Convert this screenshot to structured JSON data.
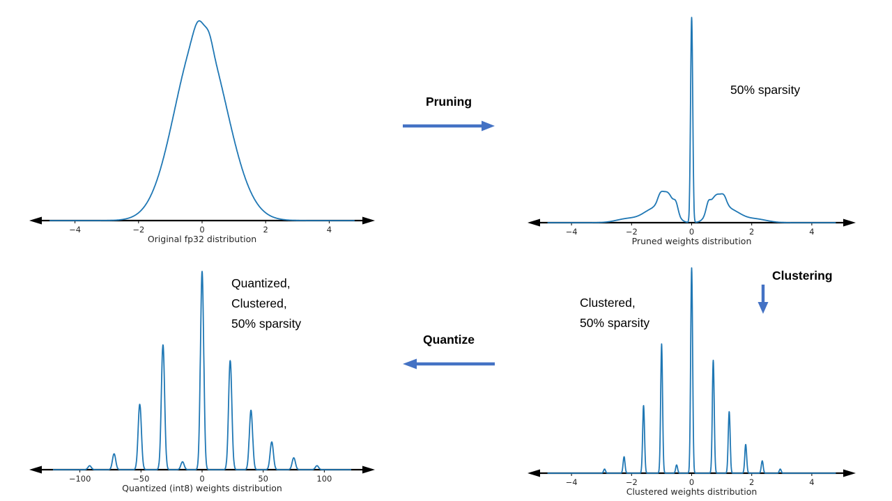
{
  "style": {
    "background": "#ffffff",
    "curve_color": "#1f77b4",
    "axis_color": "#000000",
    "flow_arrow_color": "#4472c4",
    "text_color": "#000000",
    "chart_text_color": "#262626"
  },
  "flow": {
    "pruning_label": "Pruning",
    "clustering_label": "Clustering",
    "quantize_label": "Quantize"
  },
  "chart_data": [
    {
      "id": "original-fp32",
      "type": "line",
      "xlabel": "Original fp32 distribution",
      "xlim": [
        -5,
        5
      ],
      "curve_span": [
        -4.8,
        4.8
      ],
      "xticks": [
        -4,
        -2,
        0,
        2,
        4
      ],
      "ylim": [
        0,
        1
      ],
      "description": "Smooth bell-shaped density of fp32 weights centered near 0, spanning roughly -3 to 3, with a tiny notch at the peak",
      "components": [
        {
          "c": -0.35,
          "h": 0.5,
          "w": 1.0
        },
        {
          "c": 0.3,
          "h": 0.48,
          "w": 1.05
        },
        {
          "c": -0.12,
          "h": 0.06,
          "w": 0.22
        },
        {
          "c": 0.22,
          "h": 0.045,
          "w": 0.16
        }
      ]
    },
    {
      "id": "pruned-weights",
      "type": "line",
      "xlabel": "Pruned weights distribution",
      "annotation_lines": [
        "50% sparsity"
      ],
      "xlim": [
        -5,
        5
      ],
      "curve_span": [
        -4.8,
        4.8
      ],
      "xticks": [
        -4,
        -2,
        0,
        2,
        4
      ],
      "ylim": [
        0,
        1
      ],
      "description": "Tall narrow spike at 0 (weights pruned to zero), gap around 0, small side lobes peaking near ±0.8 with tails to about ±3",
      "components": [
        {
          "c": 0.0,
          "h": 1.0,
          "w": 0.05
        },
        {
          "c": -0.8,
          "h": 0.13,
          "w": 0.32
        },
        {
          "c": 0.82,
          "h": 0.12,
          "w": 0.33
        },
        {
          "c": -0.52,
          "h": 0.04,
          "w": 0.1
        },
        {
          "c": 0.55,
          "h": 0.04,
          "w": 0.1
        },
        {
          "c": -1.3,
          "h": 0.06,
          "w": 0.45
        },
        {
          "c": 1.32,
          "h": 0.055,
          "w": 0.45
        },
        {
          "c": -1.05,
          "h": 0.03,
          "w": 0.12
        },
        {
          "c": 1.08,
          "h": 0.028,
          "w": 0.12
        },
        {
          "c": -2.1,
          "h": 0.02,
          "w": 0.55
        },
        {
          "c": 2.1,
          "h": 0.018,
          "w": 0.55
        }
      ]
    },
    {
      "id": "clustered-weights",
      "type": "line",
      "xlabel": "Clustered weights distribution",
      "annotation_lines": [
        "Clustered,",
        "50% sparsity"
      ],
      "xlim": [
        -5,
        5
      ],
      "curve_span": [
        -4.8,
        4.8
      ],
      "xticks": [
        -4,
        -2,
        0,
        2,
        4
      ],
      "ylim": [
        0,
        1
      ],
      "spike_width": 0.045,
      "description": "Discrete narrow spikes at cluster centroid values, tallest at 0, decaying outward to about ±3",
      "spikes": [
        {
          "x": -2.9,
          "h": 0.02
        },
        {
          "x": -2.25,
          "h": 0.08
        },
        {
          "x": -1.6,
          "h": 0.33
        },
        {
          "x": -1.0,
          "h": 0.63
        },
        {
          "x": -0.5,
          "h": 0.04
        },
        {
          "x": 0.0,
          "h": 1.0
        },
        {
          "x": 0.72,
          "h": 0.55
        },
        {
          "x": 1.25,
          "h": 0.3
        },
        {
          "x": 1.8,
          "h": 0.14
        },
        {
          "x": 2.35,
          "h": 0.06
        },
        {
          "x": 2.95,
          "h": 0.02
        }
      ]
    },
    {
      "id": "quantized-int8-weights",
      "type": "line",
      "xlabel": "Quantized (int8) weights distribution",
      "annotation_lines": [
        "Quantized,",
        "Clustered,",
        "50% sparsity"
      ],
      "xlim": [
        -130,
        130
      ],
      "curve_span": [
        -122,
        122
      ],
      "xticks": [
        -100,
        -50,
        0,
        50,
        100
      ],
      "ylim": [
        0,
        1
      ],
      "spike_width": 1.9,
      "description": "Discrete spikes at int8 quantized centroid values, tallest at 0, decaying outward to about ±95",
      "spikes": [
        {
          "x": -92,
          "h": 0.02
        },
        {
          "x": -72,
          "h": 0.08
        },
        {
          "x": -51,
          "h": 0.33
        },
        {
          "x": -32,
          "h": 0.63
        },
        {
          "x": -16,
          "h": 0.04
        },
        {
          "x": 0,
          "h": 1.0
        },
        {
          "x": 23,
          "h": 0.55
        },
        {
          "x": 40,
          "h": 0.3
        },
        {
          "x": 57,
          "h": 0.14
        },
        {
          "x": 75,
          "h": 0.06
        },
        {
          "x": 94,
          "h": 0.02
        }
      ]
    }
  ]
}
